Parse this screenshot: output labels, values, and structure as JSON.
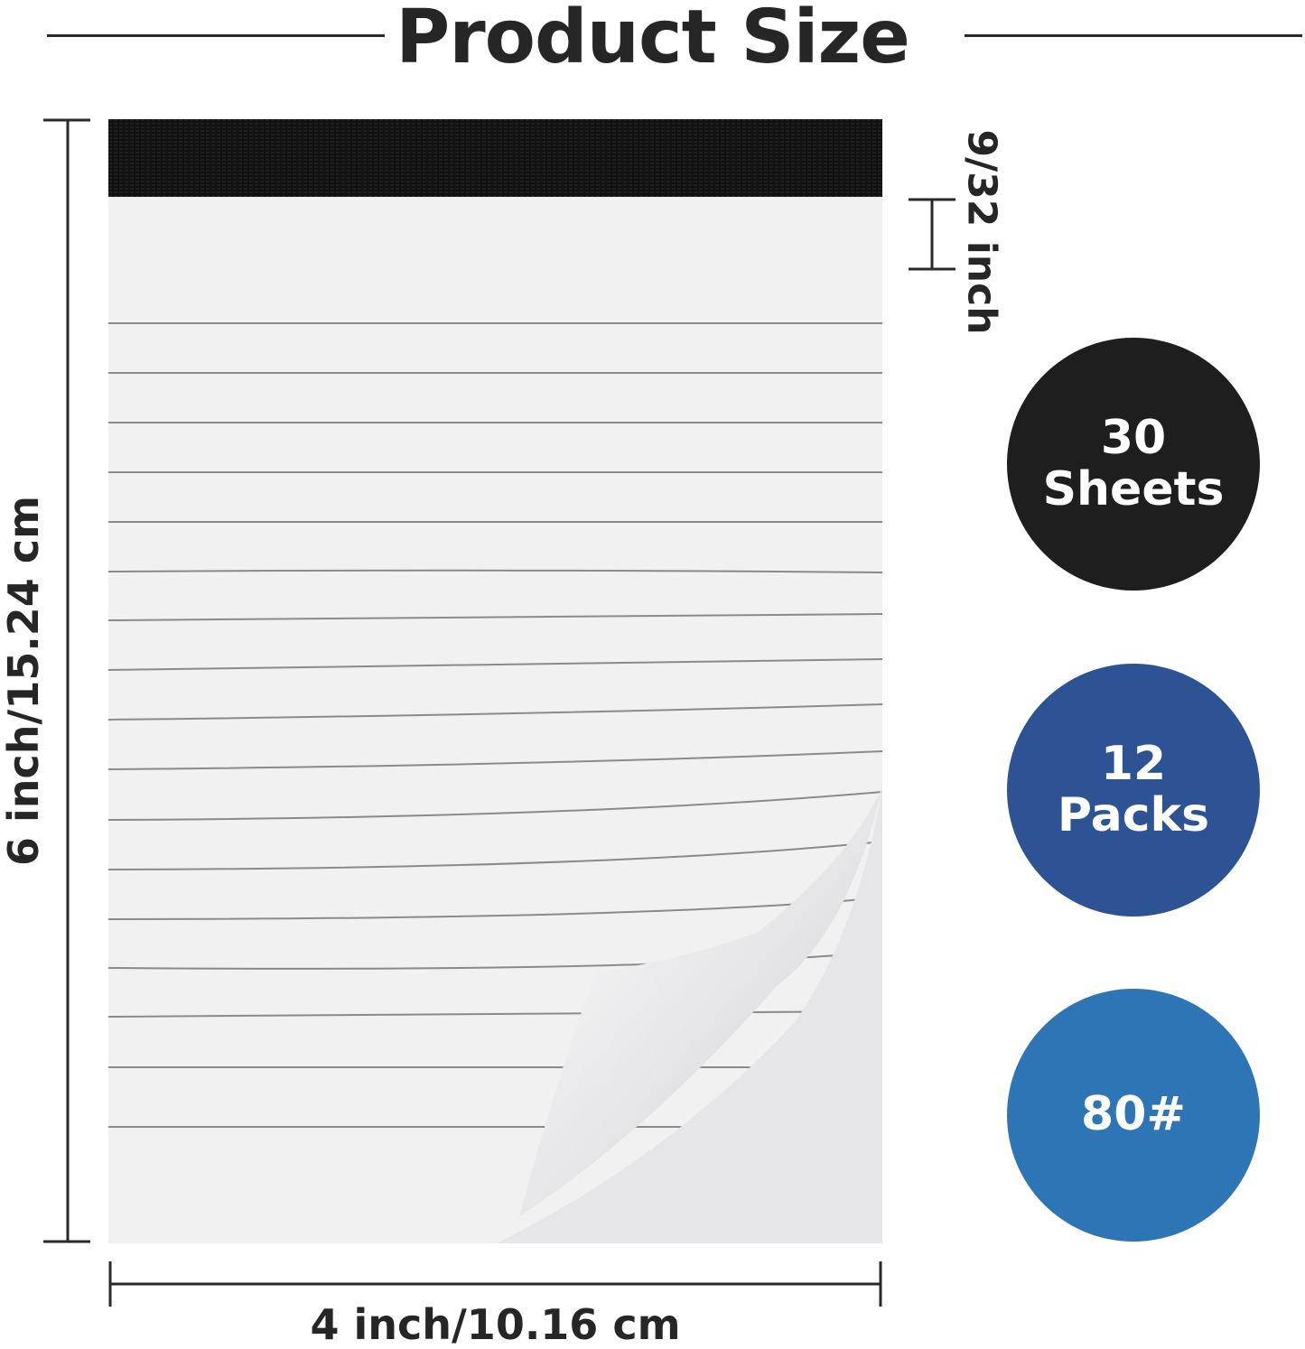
{
  "title": "Product Size",
  "dimensions": {
    "height": "6 inch/15.24 cm",
    "width": "4 inch/10.16 cm",
    "binding": "9/32 inch"
  },
  "badges": [
    {
      "line1": "30",
      "line2": "Sheets",
      "color": "#1e1e1e"
    },
    {
      "line1": "12",
      "line2": "Packs",
      "color": "#2d5395"
    },
    {
      "line1": "80#",
      "line2": "",
      "color": "#2e75b5"
    }
  ]
}
